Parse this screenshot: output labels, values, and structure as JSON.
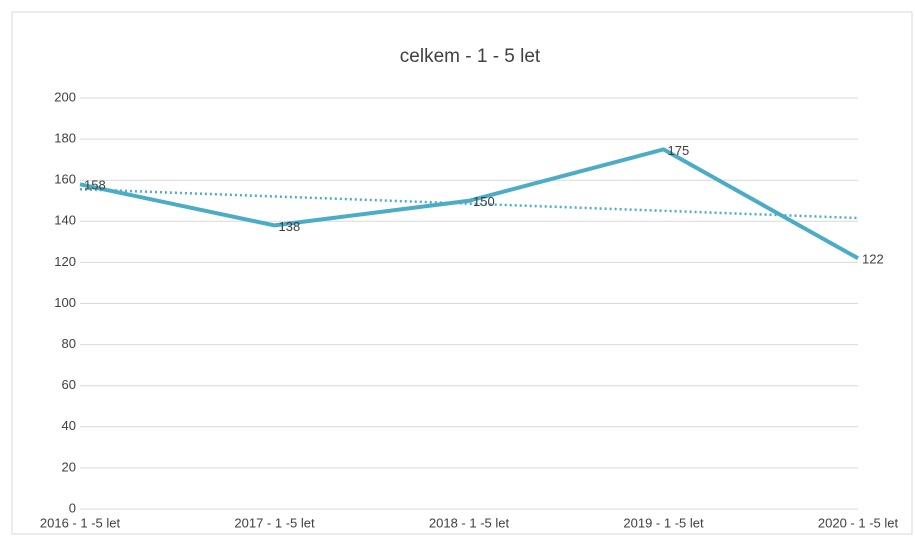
{
  "chart_data": {
    "type": "line",
    "title": "celkem - 1 - 5 let",
    "categories": [
      "2016 - 1 -5 let",
      "2017 - 1 -5 let",
      "2018 - 1 -5 let",
      "2019 - 1 -5 let",
      "2020 - 1 -5 let"
    ],
    "values": [
      158,
      138,
      150,
      175,
      122
    ],
    "color": "#4bacc6",
    "trendline": "linear",
    "ylim": [
      0,
      200
    ],
    "yticks": [
      0,
      20,
      40,
      60,
      80,
      100,
      120,
      140,
      160,
      180,
      200
    ],
    "grid": true
  }
}
